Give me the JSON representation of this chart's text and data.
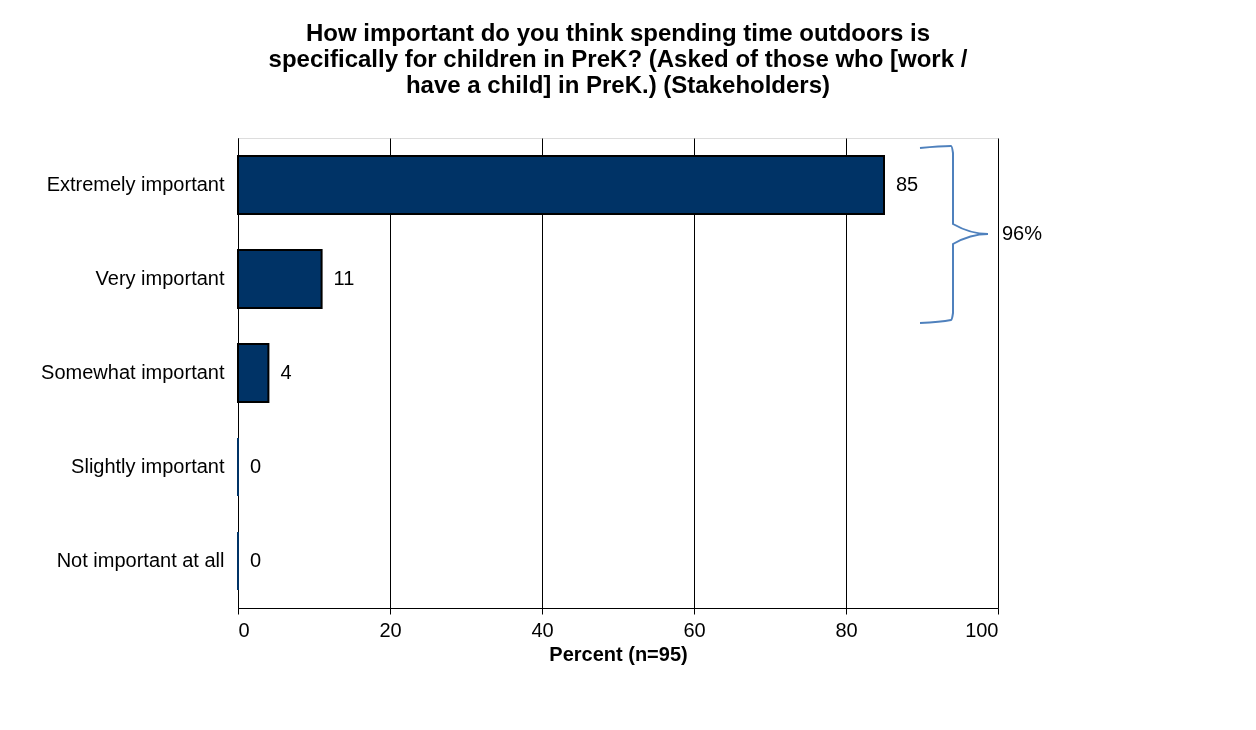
{
  "chart_data": {
    "type": "bar",
    "orientation": "horizontal",
    "title": "How important do you think spending time outdoors is specifically for children in PreK? (Asked of those who [work / have a child] in PreK.) (Stakeholders)",
    "categories": [
      "Extremely important",
      "Very important",
      "Somewhat important",
      "Slightly important",
      "Not important at all"
    ],
    "values": [
      85,
      11,
      4,
      0,
      0
    ],
    "color": "#003366",
    "xlabel": "Percent (n=95)",
    "xlim": [
      0,
      100
    ],
    "xticks": [
      0,
      20,
      40,
      60,
      80,
      100
    ],
    "grid": "x",
    "data_labels": true,
    "annotations": [
      "96%"
    ]
  }
}
